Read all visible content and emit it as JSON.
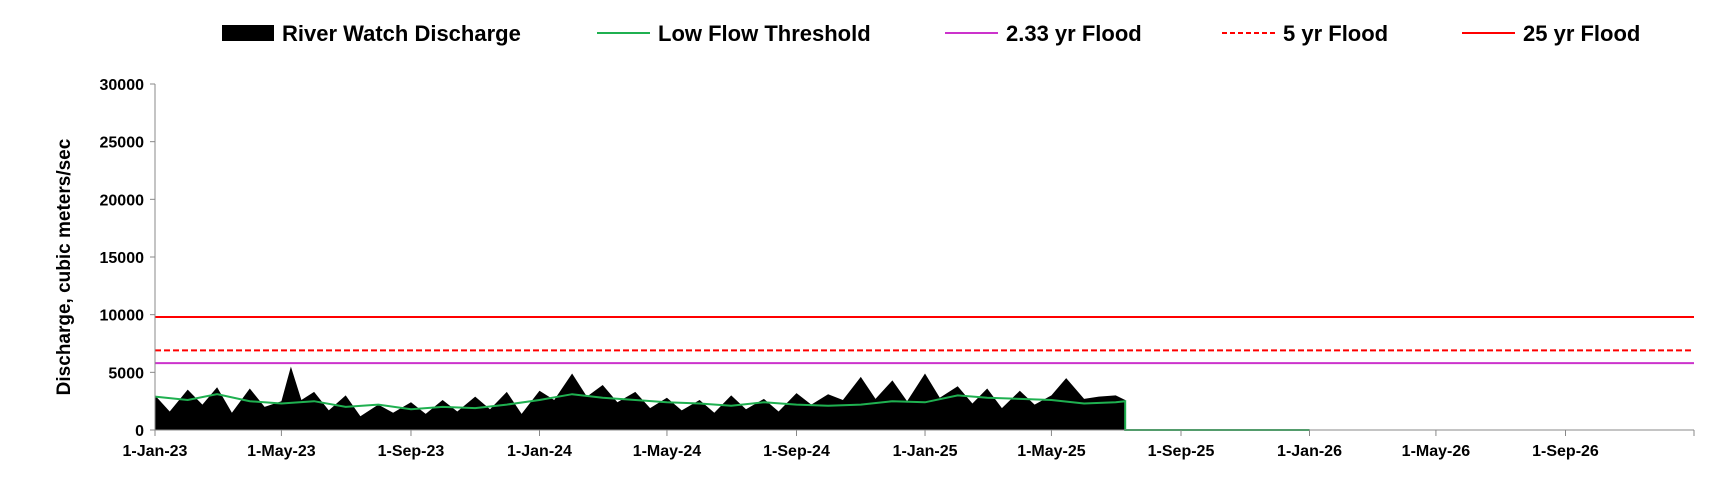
{
  "chart_data": {
    "type": "area",
    "xlabel": "",
    "ylabel": "Discharge, cubic meters/sec",
    "ylim": [
      0,
      30000
    ],
    "xlim": [
      "2023-01-01",
      "2027-01-01"
    ],
    "yticks": [
      "0",
      "5000",
      "10000",
      "15000",
      "20000",
      "25000",
      "30000"
    ],
    "xticks": [
      {
        "label": "1-Jan-23",
        "date": "2023-01-01"
      },
      {
        "label": "1-May-23",
        "date": "2023-05-01"
      },
      {
        "label": "1-Sep-23",
        "date": "2023-09-01"
      },
      {
        "label": "1-Jan-24",
        "date": "2024-01-01"
      },
      {
        "label": "1-May-24",
        "date": "2024-05-01"
      },
      {
        "label": "1-Sep-24",
        "date": "2024-09-01"
      },
      {
        "label": "1-Jan-25",
        "date": "2025-01-01"
      },
      {
        "label": "1-May-25",
        "date": "2025-05-01"
      },
      {
        "label": "1-Sep-25",
        "date": "2025-09-01"
      },
      {
        "label": "1-Jan-26",
        "date": "2026-01-01"
      },
      {
        "label": "1-May-26",
        "date": "2026-05-01"
      },
      {
        "label": "1-Sep-26",
        "date": "2026-09-01"
      }
    ],
    "grid": false,
    "legend": "top",
    "series": [
      {
        "name": "River Watch Discharge",
        "kind": "area",
        "color": "#000000",
        "x": [
          "2023-01-01",
          "2023-01-15",
          "2023-02-01",
          "2023-02-15",
          "2023-03-01",
          "2023-03-15",
          "2023-04-01",
          "2023-04-15",
          "2023-05-01",
          "2023-05-10",
          "2023-05-20",
          "2023-06-01",
          "2023-06-15",
          "2023-07-01",
          "2023-07-15",
          "2023-08-01",
          "2023-08-15",
          "2023-09-01",
          "2023-09-15",
          "2023-10-01",
          "2023-10-15",
          "2023-11-01",
          "2023-11-15",
          "2023-12-01",
          "2023-12-15",
          "2024-01-01",
          "2024-01-15",
          "2024-02-01",
          "2024-02-15",
          "2024-03-01",
          "2024-03-15",
          "2024-04-01",
          "2024-04-15",
          "2024-05-01",
          "2024-05-15",
          "2024-06-01",
          "2024-06-15",
          "2024-07-01",
          "2024-07-15",
          "2024-08-01",
          "2024-08-15",
          "2024-09-01",
          "2024-09-15",
          "2024-10-01",
          "2024-10-15",
          "2024-11-01",
          "2024-11-15",
          "2024-12-01",
          "2024-12-15",
          "2025-01-01",
          "2025-01-15",
          "2025-02-01",
          "2025-02-15",
          "2025-03-01",
          "2025-03-15",
          "2025-04-01",
          "2025-04-15",
          "2025-05-01",
          "2025-05-15",
          "2025-06-01",
          "2025-06-15",
          "2025-07-01",
          "2025-07-10"
        ],
        "values": [
          3000,
          1600,
          3500,
          2200,
          3700,
          1500,
          3600,
          2000,
          2500,
          5500,
          2600,
          3300,
          1700,
          3000,
          1200,
          2200,
          1500,
          2400,
          1400,
          2600,
          1600,
          2900,
          1800,
          3300,
          1400,
          3400,
          2600,
          4900,
          2900,
          3900,
          2400,
          3300,
          1900,
          2800,
          1700,
          2600,
          1500,
          3000,
          1800,
          2700,
          1600,
          3200,
          2200,
          3100,
          2600,
          4600,
          2700,
          4300,
          2500,
          4900,
          2800,
          3800,
          2300,
          3600,
          1900,
          3400,
          2200,
          3000,
          4500,
          2700,
          2900,
          3000,
          2600
        ]
      },
      {
        "name": "Low Flow Threshold",
        "kind": "line",
        "color": "#1fb050",
        "x": [
          "2023-01-01",
          "2023-02-01",
          "2023-03-01",
          "2023-04-01",
          "2023-05-01",
          "2023-06-01",
          "2023-07-01",
          "2023-08-01",
          "2023-09-01",
          "2023-10-01",
          "2023-11-01",
          "2023-12-01",
          "2024-01-01",
          "2024-02-01",
          "2024-03-01",
          "2024-04-01",
          "2024-05-01",
          "2024-06-01",
          "2024-07-01",
          "2024-08-01",
          "2024-09-01",
          "2024-10-01",
          "2024-11-01",
          "2024-12-01",
          "2025-01-01",
          "2025-02-01",
          "2025-03-01",
          "2025-04-01",
          "2025-05-01",
          "2025-06-01",
          "2025-07-01",
          "2025-07-10",
          "2025-07-10",
          "2026-01-01"
        ],
        "values": [
          2900,
          2600,
          3100,
          2500,
          2300,
          2500,
          2000,
          2200,
          1800,
          2000,
          1900,
          2200,
          2600,
          3100,
          2800,
          2600,
          2400,
          2300,
          2100,
          2400,
          2200,
          2100,
          2200,
          2500,
          2400,
          3000,
          2800,
          2700,
          2600,
          2300,
          2400,
          2500,
          0,
          0
        ]
      },
      {
        "name": "2.33 yr Flood",
        "kind": "hline",
        "color": "#cc33cc",
        "value": 5800
      },
      {
        "name": "5 yr Flood",
        "kind": "hline-dashed",
        "color": "#ff0000",
        "value": 6900
      },
      {
        "name": "25 yr Flood",
        "kind": "hline",
        "color": "#ff0000",
        "value": 9800
      }
    ]
  }
}
